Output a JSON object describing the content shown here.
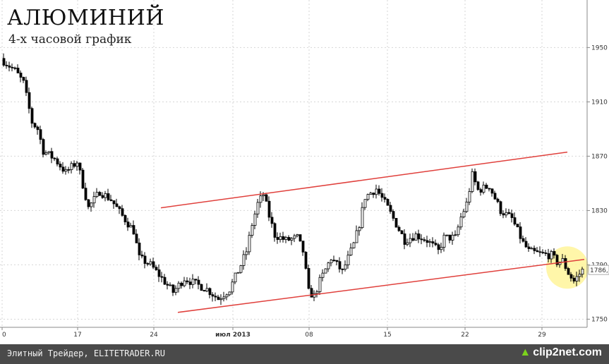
{
  "header": {
    "title": "АЛЮМИНИЙ",
    "subtitle": "4-х часовой график"
  },
  "footer": {
    "source": "Элитный Трейдер, ELITETRADER.RU",
    "brand": "clip2net.com"
  },
  "chart_data": {
    "type": "candlestick",
    "x_ticks": [
      {
        "label": "0",
        "bold": false
      },
      {
        "label": "17",
        "bold": false
      },
      {
        "label": "24",
        "bold": false
      },
      {
        "label": "июл 2013",
        "bold": true
      },
      {
        "label": "08",
        "bold": false
      },
      {
        "label": "15",
        "bold": false
      },
      {
        "label": "22",
        "bold": false
      },
      {
        "label": "29",
        "bold": false
      }
    ],
    "y_ticks": [
      1750,
      1790,
      1830,
      1870,
      1910,
      1950
    ],
    "ylim": [
      1744,
      1985
    ],
    "last_price": "1786,",
    "trend_lines": [
      {
        "from": {
          "bar": 56,
          "price": 1832
        },
        "to": {
          "bar": 200,
          "price": 1873
        }
      },
      {
        "from": {
          "bar": 62,
          "price": 1755
        },
        "to": {
          "bar": 206,
          "price": 1794
        }
      }
    ],
    "highlight": {
      "bar": 200,
      "price": 1788
    },
    "colors": {
      "candle": "#000000",
      "trend": "#e0403c",
      "highlight": "#fff59a",
      "grid": "#d6d6d6"
    },
    "close_anchors": [
      [
        0,
        1940
      ],
      [
        4,
        1933
      ],
      [
        7,
        1924
      ],
      [
        10,
        1895
      ],
      [
        12,
        1890
      ],
      [
        14,
        1874
      ],
      [
        18,
        1868
      ],
      [
        22,
        1858
      ],
      [
        26,
        1866
      ],
      [
        30,
        1832
      ],
      [
        34,
        1844
      ],
      [
        38,
        1838
      ],
      [
        42,
        1826
      ],
      [
        46,
        1815
      ],
      [
        48,
        1795
      ],
      [
        52,
        1790
      ],
      [
        56,
        1780
      ],
      [
        60,
        1770
      ],
      [
        64,
        1780
      ],
      [
        68,
        1776
      ],
      [
        72,
        1772
      ],
      [
        76,
        1765
      ],
      [
        80,
        1772
      ],
      [
        84,
        1790
      ],
      [
        86,
        1800
      ],
      [
        88,
        1820
      ],
      [
        90,
        1835
      ],
      [
        92,
        1842
      ],
      [
        94,
        1826
      ],
      [
        96,
        1812
      ],
      [
        100,
        1808
      ],
      [
        104,
        1810
      ],
      [
        106,
        1800
      ],
      [
        108,
        1770
      ],
      [
        110,
        1767
      ],
      [
        112,
        1778
      ],
      [
        116,
        1795
      ],
      [
        120,
        1785
      ],
      [
        124,
        1805
      ],
      [
        126,
        1820
      ],
      [
        128,
        1840
      ],
      [
        132,
        1846
      ],
      [
        136,
        1832
      ],
      [
        140,
        1816
      ],
      [
        142,
        1808
      ],
      [
        146,
        1812
      ],
      [
        150,
        1808
      ],
      [
        154,
        1800
      ],
      [
        156,
        1810
      ],
      [
        160,
        1810
      ],
      [
        162,
        1825
      ],
      [
        164,
        1835
      ],
      [
        166,
        1856
      ],
      [
        168,
        1845
      ],
      [
        172,
        1848
      ],
      [
        176,
        1830
      ],
      [
        180,
        1824
      ],
      [
        184,
        1806
      ],
      [
        186,
        1800
      ],
      [
        190,
        1798
      ],
      [
        194,
        1797
      ],
      [
        196,
        1792
      ],
      [
        198,
        1793
      ],
      [
        200,
        1784
      ],
      [
        202,
        1778
      ],
      [
        205,
        1786
      ]
    ]
  }
}
